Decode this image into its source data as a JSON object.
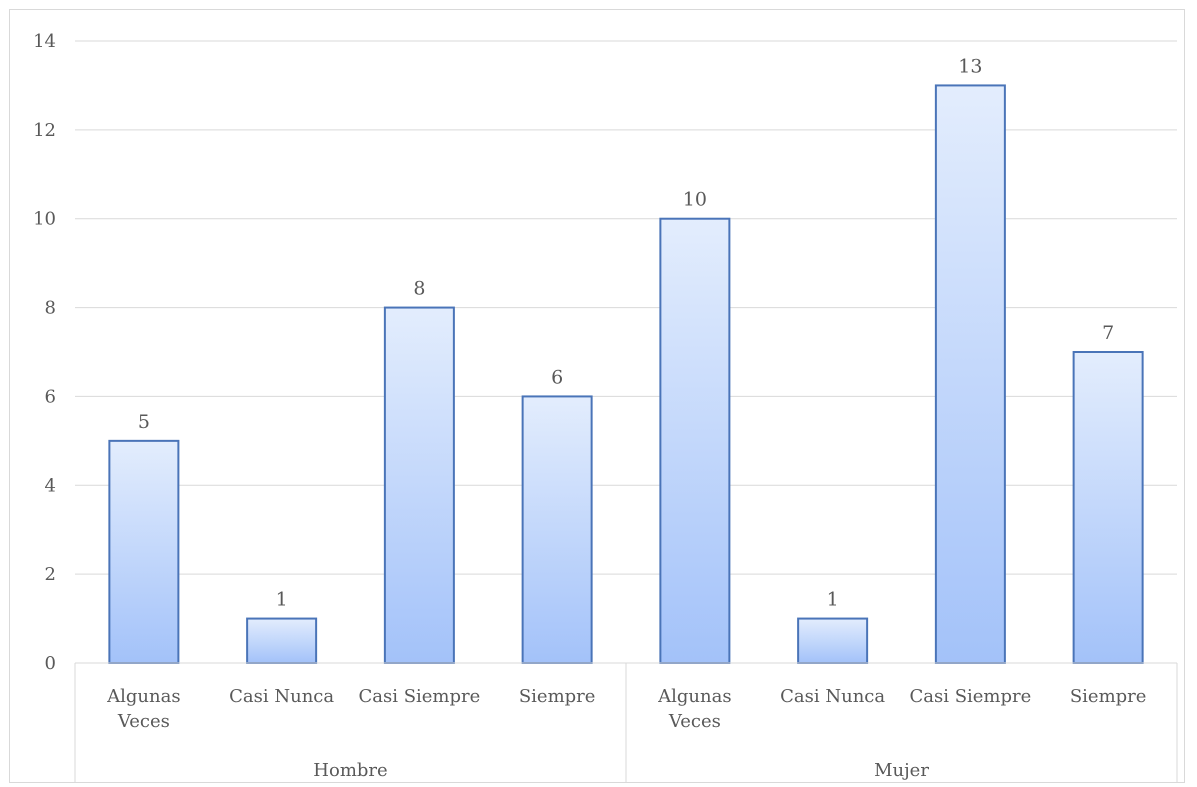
{
  "chart_data": {
    "type": "bar",
    "groups": [
      {
        "label": "Hombre",
        "categories": [
          "Algunas Veces",
          "Casi Nunca",
          "Casi Siempre",
          "Siempre"
        ],
        "values": [
          5,
          1,
          8,
          6
        ]
      },
      {
        "label": "Mujer",
        "categories": [
          "Algunas Veces",
          "Casi Nunca",
          "Casi Siempre",
          "Siempre"
        ],
        "values": [
          10,
          1,
          13,
          7
        ]
      }
    ],
    "category_label_lines": [
      [
        "Algunas",
        "Veces"
      ],
      [
        "Casi Nunca"
      ],
      [
        "Casi Siempre"
      ],
      [
        "Siempre"
      ],
      [
        "Algunas",
        "Veces"
      ],
      [
        "Casi Nunca"
      ],
      [
        "Casi Siempre"
      ],
      [
        "Siempre"
      ]
    ],
    "yticks": [
      "0",
      "2",
      "4",
      "6",
      "8",
      "10",
      "12",
      "14"
    ],
    "ylim": [
      0,
      14
    ],
    "grid": true,
    "data_labels": true,
    "colors": {
      "bar_top": "#e3edfd",
      "bar_bottom": "#a3c2f9",
      "bar_border": "#4a74b8",
      "grid": "#d9d9d9",
      "text": "#595959"
    }
  }
}
